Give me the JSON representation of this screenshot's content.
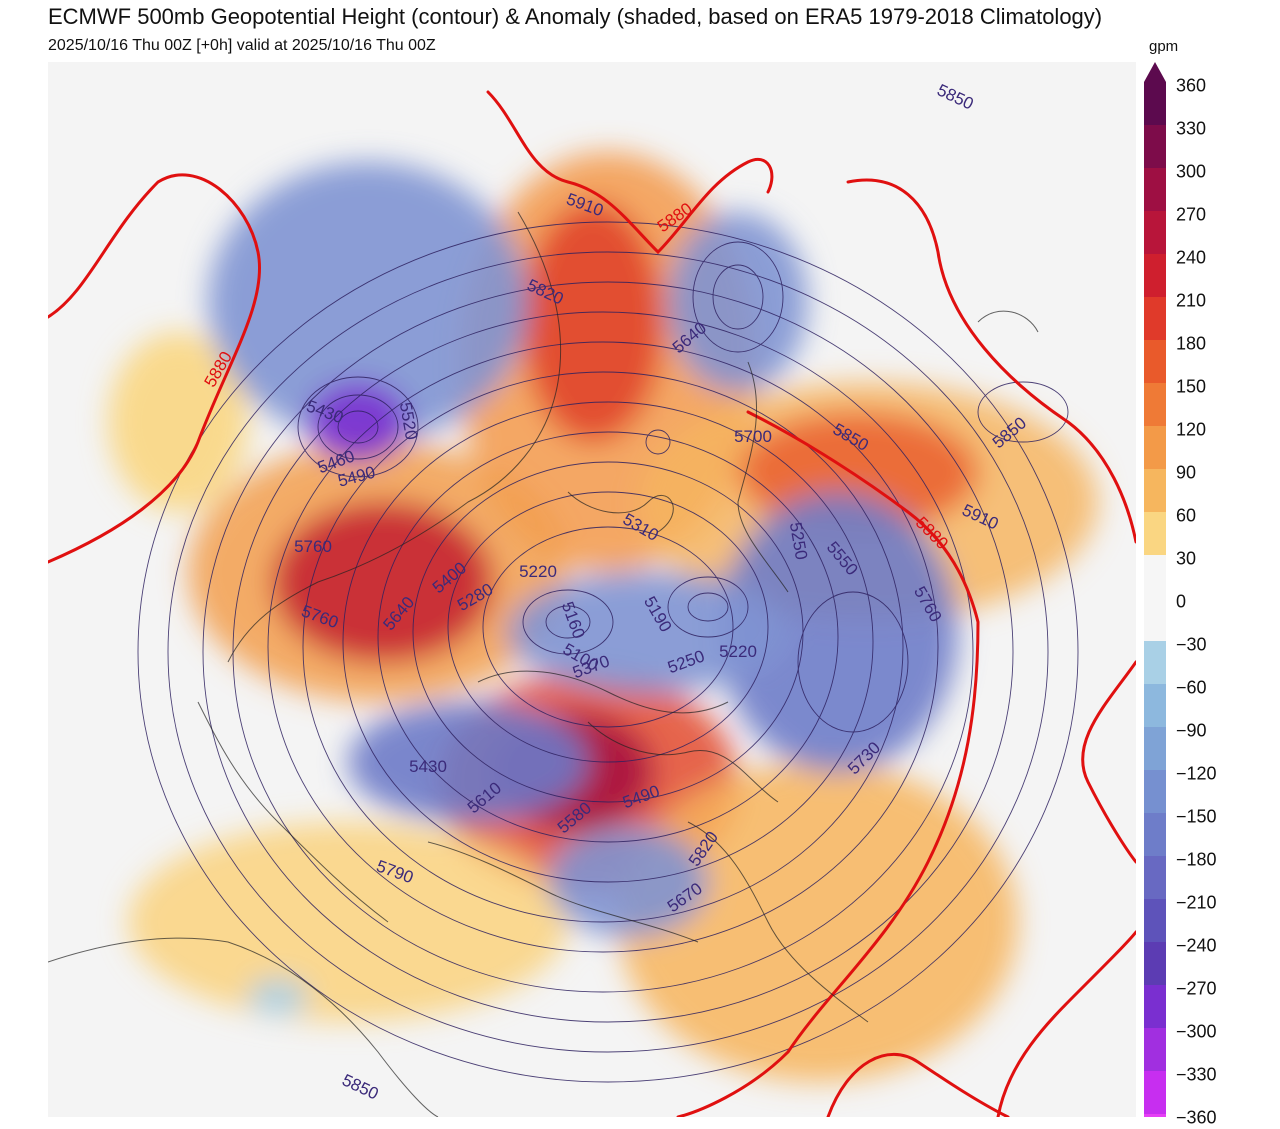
{
  "title": "ECMWF 500mb Geopotential Height (contour) & Anomaly (shaded, based on ERA5 1979-2018 Climatology)",
  "subtitle": "2025/10/16 Thu 00Z [+0h] valid at 2025/10/16 Thu 00Z",
  "colorbar": {
    "unit": "gpm",
    "labels": [
      "360",
      "330",
      "300",
      "270",
      "240",
      "210",
      "180",
      "150",
      "120",
      "90",
      "60",
      "30",
      "0",
      "−30",
      "−60",
      "−90",
      "−120",
      "−150",
      "−180",
      "−210",
      "−240",
      "−270",
      "−300",
      "−330",
      "−360"
    ],
    "colors": [
      "#5c0a4e",
      "#7d0c4a",
      "#9e0f43",
      "#b8153a",
      "#cf1f2e",
      "#e03a2a",
      "#e95a2b",
      "#ef7a36",
      "#f39a48",
      "#f6b65e",
      "#fad682",
      "#f6f6f6",
      "#f6f6f6",
      "#a9d0e6",
      "#8db8de",
      "#7fa3d6",
      "#7690d0",
      "#6e7dc9",
      "#6869c2",
      "#5e53ba",
      "#5c3cb3",
      "#7a2fd0",
      "#a12fe0",
      "#c72ef0",
      "#e63ff5"
    ]
  },
  "contour_labels": [
    {
      "text": "5850",
      "color": "#3b2a7a"
    },
    {
      "text": "5910",
      "color": "#3b2a7a"
    },
    {
      "text": "5880",
      "color": "#e01010"
    },
    {
      "text": "5820",
      "color": "#3b2a7a"
    },
    {
      "text": "5640",
      "color": "#3b2a7a"
    },
    {
      "text": "5880",
      "color": "#e01010"
    },
    {
      "text": "5430",
      "color": "#3b2a7a"
    },
    {
      "text": "5460",
      "color": "#3b2a7a"
    },
    {
      "text": "5520",
      "color": "#3b2a7a"
    },
    {
      "text": "5490",
      "color": "#3b2a7a"
    },
    {
      "text": "5700",
      "color": "#3b2a7a"
    },
    {
      "text": "5850",
      "color": "#3b2a7a"
    },
    {
      "text": "5850",
      "color": "#3b2a7a"
    },
    {
      "text": "5910",
      "color": "#3b2a7a"
    },
    {
      "text": "5880",
      "color": "#e01010"
    },
    {
      "text": "5760",
      "color": "#3b2a7a"
    },
    {
      "text": "5310",
      "color": "#3b2a7a"
    },
    {
      "text": "5250",
      "color": "#3b2a7a"
    },
    {
      "text": "5550",
      "color": "#3b2a7a"
    },
    {
      "text": "5760",
      "color": "#3b2a7a"
    },
    {
      "text": "5400",
      "color": "#3b2a7a"
    },
    {
      "text": "5280",
      "color": "#3b2a7a"
    },
    {
      "text": "5220",
      "color": "#3b2a7a"
    },
    {
      "text": "5160",
      "color": "#3b2a7a"
    },
    {
      "text": "5190",
      "color": "#3b2a7a"
    },
    {
      "text": "5640",
      "color": "#3b2a7a"
    },
    {
      "text": "5760",
      "color": "#3b2a7a"
    },
    {
      "text": "5100",
      "color": "#3b2a7a"
    },
    {
      "text": "5370",
      "color": "#3b2a7a"
    },
    {
      "text": "5250",
      "color": "#3b2a7a"
    },
    {
      "text": "5220",
      "color": "#3b2a7a"
    },
    {
      "text": "5430",
      "color": "#3b2a7a"
    },
    {
      "text": "5610",
      "color": "#3b2a7a"
    },
    {
      "text": "5580",
      "color": "#3b2a7a"
    },
    {
      "text": "5490",
      "color": "#3b2a7a"
    },
    {
      "text": "5730",
      "color": "#3b2a7a"
    },
    {
      "text": "5820",
      "color": "#3b2a7a"
    },
    {
      "text": "5790",
      "color": "#3b2a7a"
    },
    {
      "text": "5670",
      "color": "#3b2a7a"
    },
    {
      "text": "5850",
      "color": "#3b2a7a"
    }
  ]
}
